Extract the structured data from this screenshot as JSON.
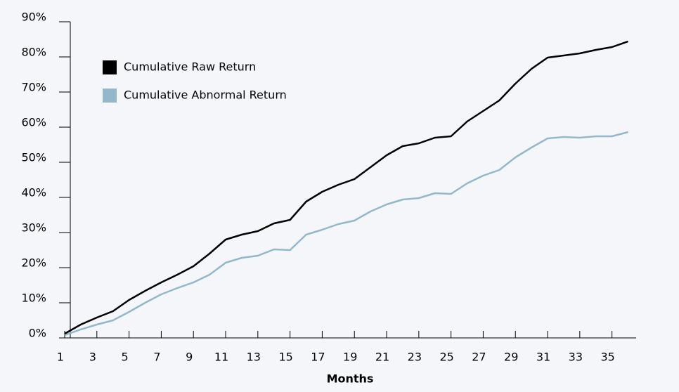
{
  "chart_data": {
    "type": "line",
    "x_label": "Months",
    "x": [
      1,
      2,
      3,
      4,
      5,
      6,
      7,
      8,
      9,
      10,
      11,
      12,
      13,
      14,
      15,
      16,
      17,
      18,
      19,
      20,
      21,
      22,
      23,
      24,
      25,
      26,
      27,
      28,
      29,
      30,
      31,
      32,
      33,
      34,
      35,
      36
    ],
    "series": [
      {
        "name": "Cumulative Raw Return",
        "color": "#000000",
        "values": [
          1.2,
          3.8,
          5.8,
          7.6,
          10.8,
          13.4,
          15.8,
          18,
          20.4,
          24,
          28,
          29.4,
          30.4,
          32.6,
          33.6,
          38.8,
          41.6,
          43.6,
          45.2,
          48.6,
          52,
          54.6,
          55.4,
          57,
          57.4,
          61.6,
          64.6,
          67.6,
          72.4,
          76.6,
          79.8,
          80.4,
          81,
          82,
          82.8,
          84.4
        ]
      },
      {
        "name": "Cumulative Abnormal Return",
        "color": "#93b8cc",
        "values": [
          0.8,
          2.4,
          3.8,
          5,
          7.4,
          10,
          12.4,
          14.2,
          15.8,
          18,
          21.4,
          22.8,
          23.4,
          25.2,
          25,
          29.4,
          30.8,
          32.4,
          33.4,
          36,
          38,
          39.4,
          39.8,
          41.2,
          41,
          44,
          46.2,
          47.8,
          51.4,
          54.2,
          56.8,
          57.2,
          57,
          57.4,
          57.4,
          58.6
        ]
      }
    ],
    "xlim": [
      1,
      36.5
    ],
    "xticks": [
      1,
      3,
      5,
      7,
      9,
      11,
      13,
      15,
      17,
      19,
      21,
      23,
      25,
      27,
      29,
      31,
      33,
      35
    ],
    "ylim": [
      0,
      90
    ],
    "yticks": [
      {
        "value": 0,
        "label": "0%"
      },
      {
        "value": 10,
        "label": "10%"
      },
      {
        "value": 20,
        "label": "20%"
      },
      {
        "value": 30,
        "label": "30%"
      },
      {
        "value": 40,
        "label": "40%"
      },
      {
        "value": 50,
        "label": "50%"
      },
      {
        "value": 60,
        "label": "60%"
      },
      {
        "value": 70,
        "label": "70%"
      },
      {
        "value": 80,
        "label": "80%"
      },
      {
        "value": 90,
        "label": "90%"
      }
    ],
    "legend": "top-left"
  }
}
